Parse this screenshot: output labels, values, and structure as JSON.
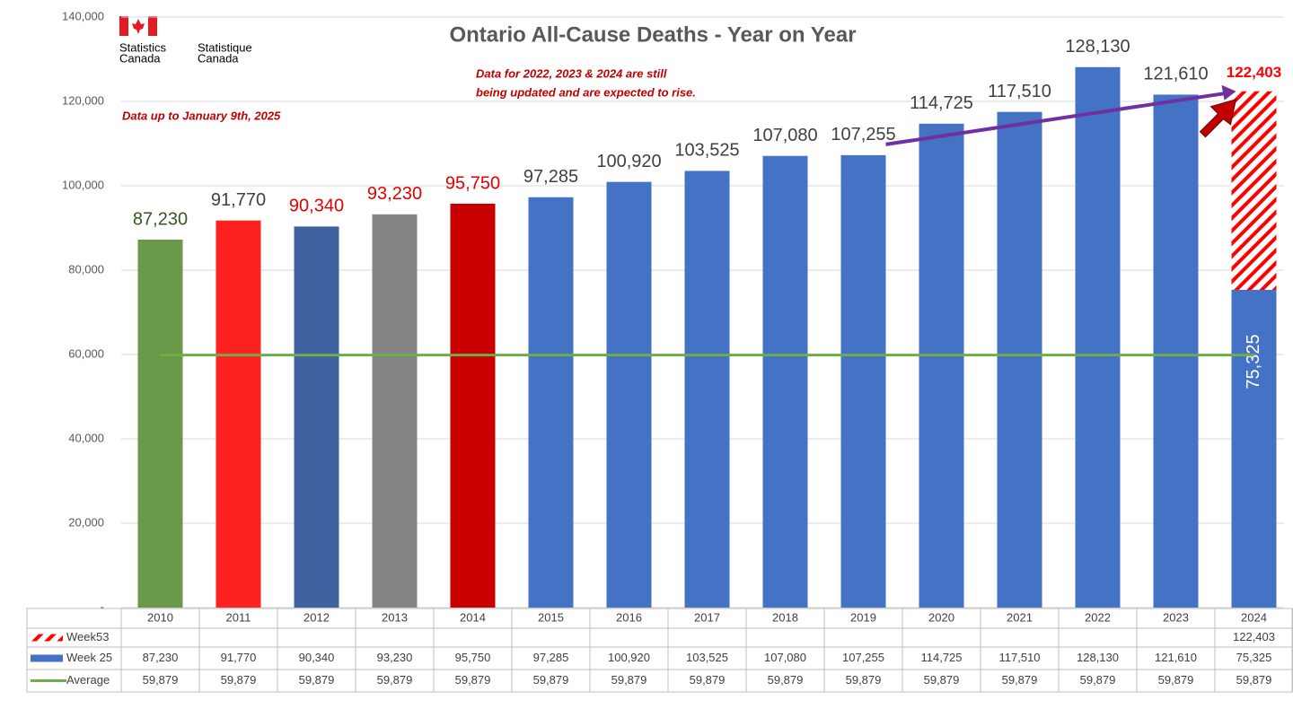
{
  "chart_data": {
    "type": "bar",
    "title": "Ontario All-Cause Deaths - Year on Year",
    "note": "Data up to January 9th, 2025",
    "update_note": [
      "Data for 2022, 2023 & 2024 are still",
      "being updated and are expected to rise."
    ],
    "logo_en": [
      "Statistics",
      "Canada"
    ],
    "logo_fr": [
      "Statistique",
      "Canada"
    ],
    "categories": [
      "2010",
      "2011",
      "2012",
      "2013",
      "2014",
      "2015",
      "2016",
      "2017",
      "2018",
      "2019",
      "2020",
      "2021",
      "2022",
      "2023",
      "2024"
    ],
    "ylim": [
      0,
      140000
    ],
    "yticks": [
      {
        "value": 0,
        "label": "-"
      },
      {
        "value": 20000,
        "label": "20,000"
      },
      {
        "value": 40000,
        "label": "40,000"
      },
      {
        "value": 60000,
        "label": "60,000"
      },
      {
        "value": 80000,
        "label": "80,000"
      },
      {
        "value": 100000,
        "label": "100,000"
      },
      {
        "value": 120000,
        "label": "120,000"
      },
      {
        "value": 140000,
        "label": "140,000"
      }
    ],
    "grid": true,
    "series": [
      {
        "name": "Week53",
        "color": "#ff0000",
        "pattern": "hatch",
        "values": [
          null,
          null,
          null,
          null,
          null,
          null,
          null,
          null,
          null,
          null,
          null,
          null,
          null,
          null,
          122403
        ],
        "value_labels": [
          null,
          null,
          null,
          null,
          null,
          null,
          null,
          null,
          null,
          null,
          null,
          null,
          null,
          null,
          "122,403"
        ]
      },
      {
        "name": "Week 25",
        "color": "#4472c4",
        "colors": [
          "#6a994a",
          "#ff2020",
          "#3f62a0",
          "#858585",
          "#c80000",
          "#4472c4",
          "#4472c4",
          "#4472c4",
          "#4472c4",
          "#4472c4",
          "#4472c4",
          "#4472c4",
          "#4472c4",
          "#4472c4",
          "#4472c4"
        ],
        "label_colors": [
          "#375623",
          "#404040",
          "#e00000",
          "#e00000",
          "#e00000",
          "#404040",
          "#404040",
          "#404040",
          "#404040",
          "#404040",
          "#404040",
          "#404040",
          "#404040",
          "#404040",
          "#ffffff"
        ],
        "values": [
          87230,
          91770,
          90340,
          93230,
          95750,
          97285,
          100920,
          103525,
          107080,
          107255,
          114725,
          117510,
          128130,
          121610,
          75325
        ],
        "value_labels": [
          "87,230",
          "91,770",
          "90,340",
          "93,230",
          "95,750",
          "97,285",
          "100,920",
          "103,525",
          "107,080",
          "107,255",
          "114,725",
          "117,510",
          "128,130",
          "121,610",
          "75,325"
        ]
      },
      {
        "name": "Average",
        "type": "line",
        "color": "#70ad47",
        "values": [
          59879,
          59879,
          59879,
          59879,
          59879,
          59879,
          59879,
          59879,
          59879,
          59879,
          59879,
          59879,
          59879,
          59879,
          59879
        ],
        "value_labels": [
          "59,879",
          "59,879",
          "59,879",
          "59,879",
          "59,879",
          "59,879",
          "59,879",
          "59,879",
          "59,879",
          "59,879",
          "59,879",
          "59,879",
          "59,879",
          "59,879",
          "59,879"
        ]
      }
    ]
  }
}
